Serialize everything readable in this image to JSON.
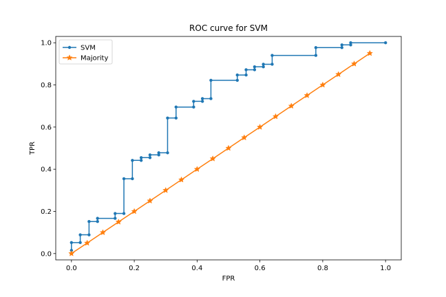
{
  "chart_data": {
    "type": "line",
    "title": "ROC curve for SVM",
    "xlabel": "FPR",
    "ylabel": "TPR",
    "xlim": [
      -0.05,
      1.05
    ],
    "ylim": [
      -0.03,
      1.03
    ],
    "xticks": [
      0.0,
      0.2,
      0.4,
      0.6,
      0.8,
      1.0
    ],
    "xtick_labels": [
      "0.0",
      "0.2",
      "0.4",
      "0.6",
      "0.8",
      "1.0"
    ],
    "yticks": [
      0.0,
      0.2,
      0.4,
      0.6,
      0.8,
      1.0
    ],
    "ytick_labels": [
      "0.0",
      "0.2",
      "0.4",
      "0.6",
      "0.8",
      "1.0"
    ],
    "grid": false,
    "legend_position": "top-left",
    "series": [
      {
        "name": "SVM",
        "color": "#1f77b4",
        "marker": "circle",
        "x": [
          0.0,
          0.0,
          0.0,
          0.028,
          0.028,
          0.056,
          0.056,
          0.083,
          0.083,
          0.139,
          0.139,
          0.167,
          0.167,
          0.194,
          0.194,
          0.222,
          0.222,
          0.25,
          0.25,
          0.278,
          0.278,
          0.306,
          0.306,
          0.333,
          0.333,
          0.389,
          0.389,
          0.417,
          0.417,
          0.444,
          0.444,
          0.528,
          0.528,
          0.556,
          0.556,
          0.583,
          0.583,
          0.611,
          0.611,
          0.639,
          0.639,
          0.778,
          0.778,
          0.861,
          0.861,
          0.889,
          0.889,
          1.0
        ],
        "y": [
          0.0,
          0.015,
          0.052,
          0.052,
          0.089,
          0.089,
          0.152,
          0.152,
          0.167,
          0.167,
          0.19,
          0.19,
          0.355,
          0.355,
          0.442,
          0.442,
          0.455,
          0.455,
          0.468,
          0.468,
          0.478,
          0.478,
          0.643,
          0.643,
          0.695,
          0.695,
          0.722,
          0.722,
          0.735,
          0.735,
          0.822,
          0.822,
          0.847,
          0.847,
          0.872,
          0.872,
          0.886,
          0.886,
          0.898,
          0.898,
          0.94,
          0.94,
          0.977,
          0.977,
          0.99,
          0.99,
          1.0,
          1.0
        ]
      },
      {
        "name": "Majority",
        "color": "#ff7f0e",
        "marker": "star",
        "x": [
          0.0,
          0.05,
          0.1,
          0.15,
          0.2,
          0.25,
          0.3,
          0.35,
          0.4,
          0.45,
          0.5,
          0.55,
          0.6,
          0.65,
          0.7,
          0.75,
          0.8,
          0.85,
          0.9,
          0.95
        ],
        "y": [
          0.0,
          0.05,
          0.1,
          0.15,
          0.2,
          0.25,
          0.3,
          0.35,
          0.4,
          0.45,
          0.5,
          0.55,
          0.6,
          0.65,
          0.7,
          0.75,
          0.8,
          0.85,
          0.9,
          0.95
        ]
      }
    ]
  }
}
